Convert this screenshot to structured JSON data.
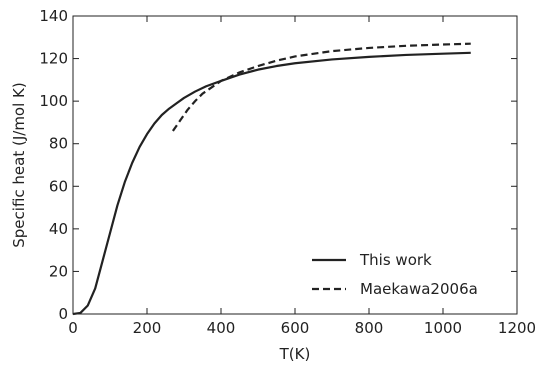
{
  "chart_data": {
    "type": "line",
    "title": "",
    "xlabel": "T(K)",
    "ylabel": "Specific heat (J/mol K)",
    "xlim": [
      0,
      1200
    ],
    "ylim": [
      0,
      140
    ],
    "xticks": [
      0,
      200,
      400,
      600,
      800,
      1000,
      1200
    ],
    "yticks": [
      0,
      20,
      40,
      60,
      80,
      100,
      120,
      140
    ],
    "grid": false,
    "legend_position": "lower-right",
    "series": [
      {
        "name": "This work",
        "style": "solid",
        "color": "#222222",
        "x": [
          0,
          20,
          40,
          60,
          80,
          100,
          120,
          140,
          160,
          180,
          200,
          220,
          240,
          260,
          280,
          300,
          330,
          360,
          400,
          450,
          500,
          550,
          600,
          700,
          800,
          900,
          1000,
          1075
        ],
        "y": [
          0,
          0.5,
          4,
          12,
          25,
          38,
          51,
          62,
          71,
          78.5,
          84.5,
          89.5,
          93.5,
          96.5,
          99,
          101.5,
          104.5,
          107,
          109.5,
          112.5,
          114.8,
          116.5,
          117.8,
          119.6,
          120.8,
          121.7,
          122.3,
          122.7
        ]
      },
      {
        "name": "Maekawa2006a",
        "style": "dashed",
        "color": "#222222",
        "x": [
          270,
          290,
          310,
          330,
          350,
          375,
          400,
          450,
          500,
          550,
          600,
          700,
          800,
          900,
          1000,
          1075
        ],
        "y": [
          86,
          91,
          96,
          100,
          103.5,
          106.5,
          109.5,
          113.5,
          116.5,
          119,
          121,
          123.5,
          125,
          126,
          126.6,
          127
        ]
      }
    ]
  }
}
